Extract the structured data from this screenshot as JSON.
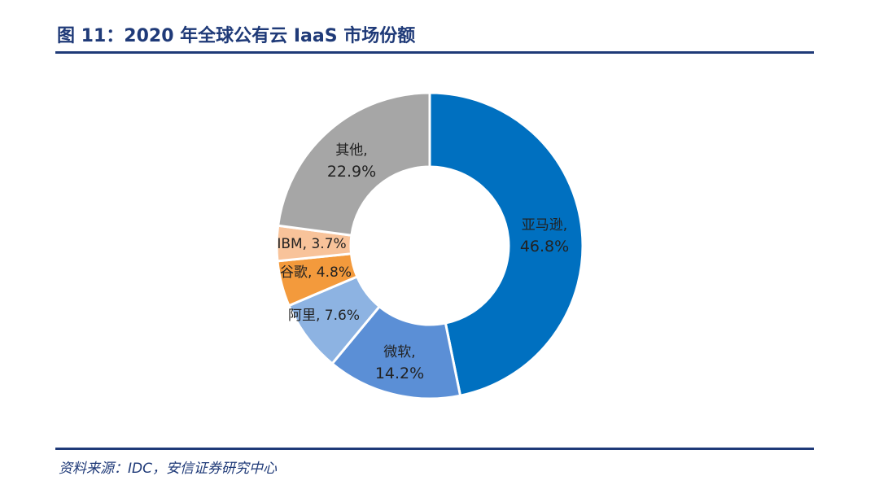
{
  "header": {
    "title": "图 11：2020 年全球公有云 IaaS 市场份额"
  },
  "footer": {
    "source": "资料来源：IDC，安信证券研究中心"
  },
  "chart_data": {
    "type": "pie",
    "donut": true,
    "title": "图 11：2020 年全球公有云 IaaS 市场份额",
    "unit": "%",
    "slices": [
      {
        "name": "亚马逊",
        "value": 46.8,
        "label": "46.8%",
        "color": "#0070c0"
      },
      {
        "name": "微软",
        "value": 14.2,
        "label": "14.2%",
        "color": "#5b8fd6"
      },
      {
        "name": "阿里",
        "value": 7.6,
        "label": "7.6%",
        "color": "#8db3e2"
      },
      {
        "name": "谷歌",
        "value": 4.8,
        "label": "4.8%",
        "color": "#f39a3c"
      },
      {
        "name": "IBM",
        "value": 3.7,
        "label": "3.7%",
        "color": "#f8c39a"
      },
      {
        "name": "其他",
        "value": 22.9,
        "label": "22.9%",
        "color": "#a6a6a6"
      }
    ]
  }
}
